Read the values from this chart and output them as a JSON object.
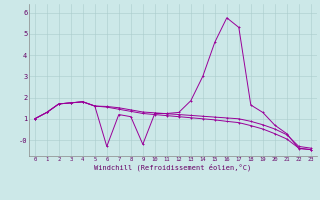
{
  "xlabel": "Windchill (Refroidissement éolien,°C)",
  "background_color": "#cce8e8",
  "line_color": "#990099",
  "x_values": [
    0,
    1,
    2,
    3,
    4,
    5,
    6,
    7,
    8,
    9,
    10,
    11,
    12,
    13,
    14,
    15,
    16,
    17,
    18,
    19,
    20,
    21,
    22,
    23
  ],
  "series1": [
    1.0,
    1.3,
    1.7,
    1.75,
    1.8,
    1.6,
    -0.3,
    1.2,
    1.1,
    -0.2,
    1.25,
    1.25,
    1.3,
    1.85,
    3.0,
    4.6,
    5.75,
    5.3,
    1.65,
    1.3,
    0.7,
    0.3,
    -0.4,
    -0.45
  ],
  "series2": [
    1.0,
    1.3,
    1.7,
    1.75,
    1.8,
    1.6,
    1.58,
    1.52,
    1.42,
    1.32,
    1.28,
    1.24,
    1.2,
    1.16,
    1.12,
    1.08,
    1.04,
    1.0,
    0.88,
    0.72,
    0.52,
    0.25,
    -0.3,
    -0.38
  ],
  "series3": [
    1.0,
    1.3,
    1.7,
    1.75,
    1.8,
    1.6,
    1.55,
    1.45,
    1.35,
    1.25,
    1.2,
    1.15,
    1.1,
    1.05,
    1.0,
    0.95,
    0.88,
    0.82,
    0.68,
    0.52,
    0.3,
    0.05,
    -0.38,
    -0.45
  ],
  "ylim": [
    -0.75,
    6.4
  ],
  "xlim": [
    -0.5,
    23.5
  ],
  "yticks": [
    0,
    1,
    2,
    3,
    4,
    5,
    6
  ],
  "ytick_labels": [
    "-0",
    "1",
    "2",
    "3",
    "4",
    "5",
    "6"
  ],
  "xticks": [
    0,
    1,
    2,
    3,
    4,
    5,
    6,
    7,
    8,
    9,
    10,
    11,
    12,
    13,
    14,
    15,
    16,
    17,
    18,
    19,
    20,
    21,
    22,
    23
  ],
  "grid_color": "#aacccc",
  "spine_color": "#888888"
}
